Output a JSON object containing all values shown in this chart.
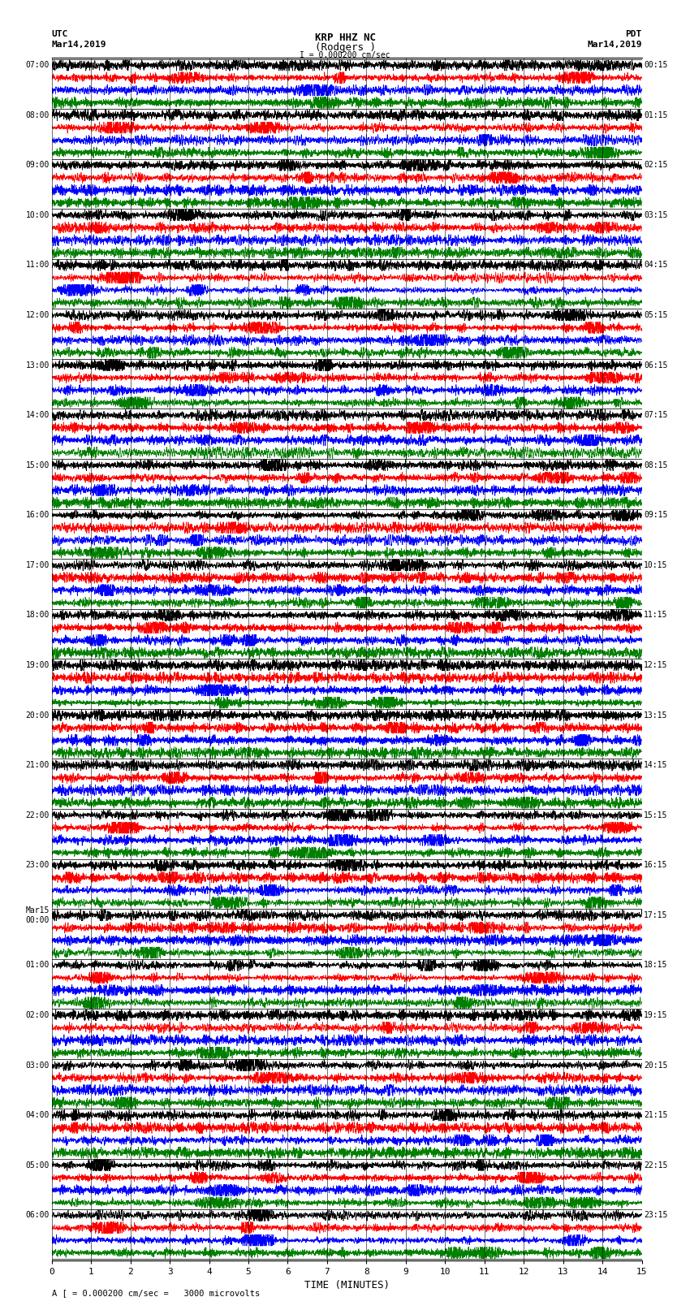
{
  "title_line1": "KRP HHZ NC",
  "title_line2": "(Rodgers )",
  "scale_label": "I = 0.000200 cm/sec",
  "bottom_label": "A [ = 0.000200 cm/sec =   3000 microvolts",
  "xlabel": "TIME (MINUTES)",
  "left_header1": "UTC",
  "left_header2": "Mar14,2019",
  "right_header1": "PDT",
  "right_header2": "Mar14,2019",
  "left_times": [
    "07:00",
    "08:00",
    "09:00",
    "10:00",
    "11:00",
    "12:00",
    "13:00",
    "14:00",
    "15:00",
    "16:00",
    "17:00",
    "18:00",
    "19:00",
    "20:00",
    "21:00",
    "22:00",
    "23:00",
    "Mar15\n00:00",
    "01:00",
    "02:00",
    "03:00",
    "04:00",
    "05:00",
    "06:00"
  ],
  "right_times": [
    "00:15",
    "01:15",
    "02:15",
    "03:15",
    "04:15",
    "05:15",
    "06:15",
    "07:15",
    "08:15",
    "09:15",
    "10:15",
    "11:15",
    "12:15",
    "13:15",
    "14:15",
    "15:15",
    "16:15",
    "17:15",
    "18:15",
    "19:15",
    "20:15",
    "21:15",
    "22:15",
    "23:15"
  ],
  "num_rows": 24,
  "samples_per_row": 4500,
  "colors": [
    "black",
    "red",
    "blue",
    "green"
  ],
  "fig_width": 8.5,
  "fig_height": 16.13,
  "bg_color": "white",
  "trace_amplitude": 0.45,
  "linewidth": 0.5,
  "xticks": [
    0,
    1,
    2,
    3,
    4,
    5,
    6,
    7,
    8,
    9,
    10,
    11,
    12,
    13,
    14,
    15
  ],
  "xticklabels": [
    "0",
    "1",
    "2",
    "3",
    "4",
    "5",
    "6",
    "7",
    "8",
    "9",
    "10",
    "11",
    "12",
    "13",
    "14",
    "15"
  ]
}
